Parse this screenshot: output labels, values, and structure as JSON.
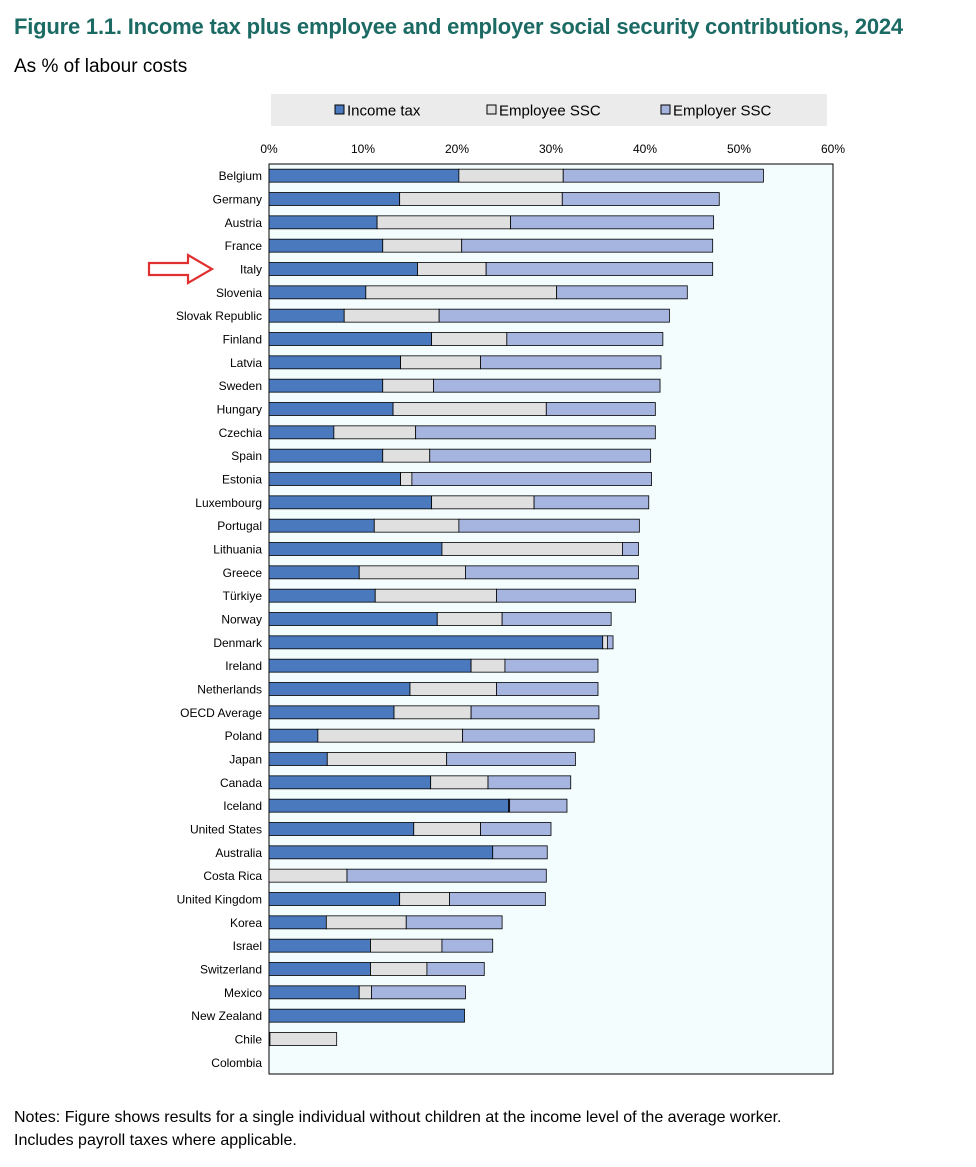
{
  "title": "Figure 1.1. Income tax plus employee and employer social security contributions, 2024",
  "subtitle": "As % of labour costs",
  "notes": [
    "Notes: Figure shows results for a single individual without children at the income level of the average worker.",
    "Includes payroll taxes where applicable."
  ],
  "colors": {
    "income_tax": "#4a79bd",
    "employee_ssc": "#e0e0e0",
    "employer_ssc": "#a6b5e0",
    "plot_bg": "#f3fdfd",
    "highlight_arrow": "#e03030"
  },
  "chart_data": {
    "type": "bar",
    "orientation": "horizontal",
    "stacked": true,
    "xlim": [
      0,
      60
    ],
    "x_ticks": [
      "0%",
      "10%",
      "20%",
      "30%",
      "40%",
      "50%",
      "60%"
    ],
    "legend_position": "top",
    "highlighted_category": "Italy",
    "categories": [
      "Belgium",
      "Germany",
      "Austria",
      "France",
      "Italy",
      "Slovenia",
      "Slovak Republic",
      "Finland",
      "Latvia",
      "Sweden",
      "Hungary",
      "Czechia",
      "Spain",
      "Estonia",
      "Luxembourg",
      "Portugal",
      "Lithuania",
      "Greece",
      "Türkiye",
      "Norway",
      "Denmark",
      "Ireland",
      "Netherlands",
      "OECD Average",
      "Poland",
      "Japan",
      "Canada",
      "Iceland",
      "United States",
      "Australia",
      "Costa Rica",
      "United Kingdom",
      "Korea",
      "Israel",
      "Switzerland",
      "Mexico",
      "New Zealand",
      "Chile",
      "Colombia"
    ],
    "series": [
      {
        "name": "Income tax",
        "values": [
          20.2,
          13.9,
          11.5,
          12.1,
          15.8,
          10.3,
          8.0,
          17.3,
          14.0,
          12.1,
          13.2,
          6.9,
          12.1,
          14.0,
          17.3,
          11.2,
          18.4,
          9.6,
          11.3,
          17.9,
          35.5,
          21.5,
          15.0,
          13.3,
          5.2,
          6.2,
          17.2,
          25.5,
          15.4,
          23.8,
          0.0,
          13.9,
          6.1,
          10.8,
          10.8,
          9.6,
          20.8,
          0.1,
          0.0
        ]
      },
      {
        "name": "Employee SSC",
        "values": [
          11.1,
          17.3,
          14.2,
          8.4,
          7.3,
          20.3,
          10.1,
          8.0,
          8.5,
          5.4,
          16.3,
          8.7,
          5.0,
          1.2,
          10.9,
          9.0,
          19.2,
          11.3,
          12.9,
          6.9,
          0.5,
          3.6,
          9.2,
          8.2,
          15.4,
          12.7,
          6.1,
          0.1,
          7.1,
          0.0,
          8.3,
          5.3,
          8.5,
          7.6,
          6.0,
          1.3,
          0.0,
          7.1,
          0.0
        ]
      },
      {
        "name": "Employer SSC",
        "values": [
          21.3,
          16.7,
          21.6,
          26.7,
          24.1,
          13.9,
          24.5,
          16.6,
          19.2,
          24.1,
          11.6,
          25.5,
          23.5,
          25.5,
          12.2,
          19.2,
          1.7,
          18.4,
          14.8,
          11.6,
          0.6,
          9.9,
          10.8,
          13.6,
          14.0,
          13.7,
          8.8,
          6.1,
          7.5,
          5.8,
          21.2,
          10.2,
          10.2,
          5.4,
          6.1,
          10.0,
          0.0,
          0.0,
          0.0
        ]
      }
    ]
  }
}
